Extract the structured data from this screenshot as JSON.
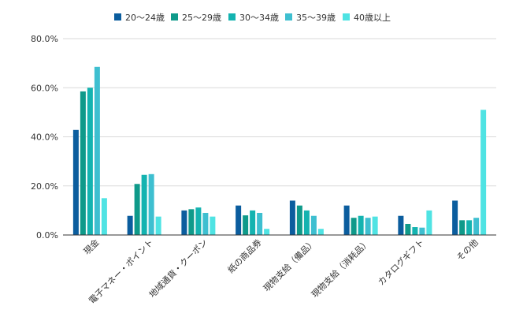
{
  "chart_data": {
    "type": "bar",
    "title": "",
    "xlabel": "",
    "ylabel": "",
    "ylim": [
      0,
      80
    ],
    "y_ticks": [
      "0.0%",
      "20.0%",
      "40.0%",
      "60.0%",
      "80.0%"
    ],
    "grid": true,
    "legend_position": "top-center",
    "categories": [
      "現金",
      "電子マネー・ポイント",
      "地域通貨・クーポン",
      "紙の商品券",
      "現物支給（備品）",
      "現物支給（消耗品）",
      "カタログギフト",
      "その他"
    ],
    "series": [
      {
        "name": "20〜24歳",
        "color": "#0b5d9e",
        "values": [
          42.8,
          7.8,
          10.0,
          12.0,
          14.0,
          12.0,
          7.8,
          14.0
        ]
      },
      {
        "name": "25〜29歳",
        "color": "#0f9a8a",
        "values": [
          58.5,
          20.8,
          10.5,
          8.0,
          12.0,
          7.0,
          4.5,
          6.0
        ]
      },
      {
        "name": "30〜34歳",
        "color": "#14b3b0",
        "values": [
          60.0,
          24.5,
          11.2,
          10.0,
          10.0,
          7.8,
          3.2,
          6.0
        ]
      },
      {
        "name": "35〜39歳",
        "color": "#3ebfd0",
        "values": [
          68.5,
          24.8,
          9.0,
          9.0,
          7.8,
          7.0,
          3.0,
          7.0
        ]
      },
      {
        "name": "40歳以上",
        "color": "#4fe3e3",
        "values": [
          15.0,
          7.5,
          7.5,
          2.5,
          2.5,
          7.5,
          10.0,
          51.0
        ]
      }
    ]
  }
}
